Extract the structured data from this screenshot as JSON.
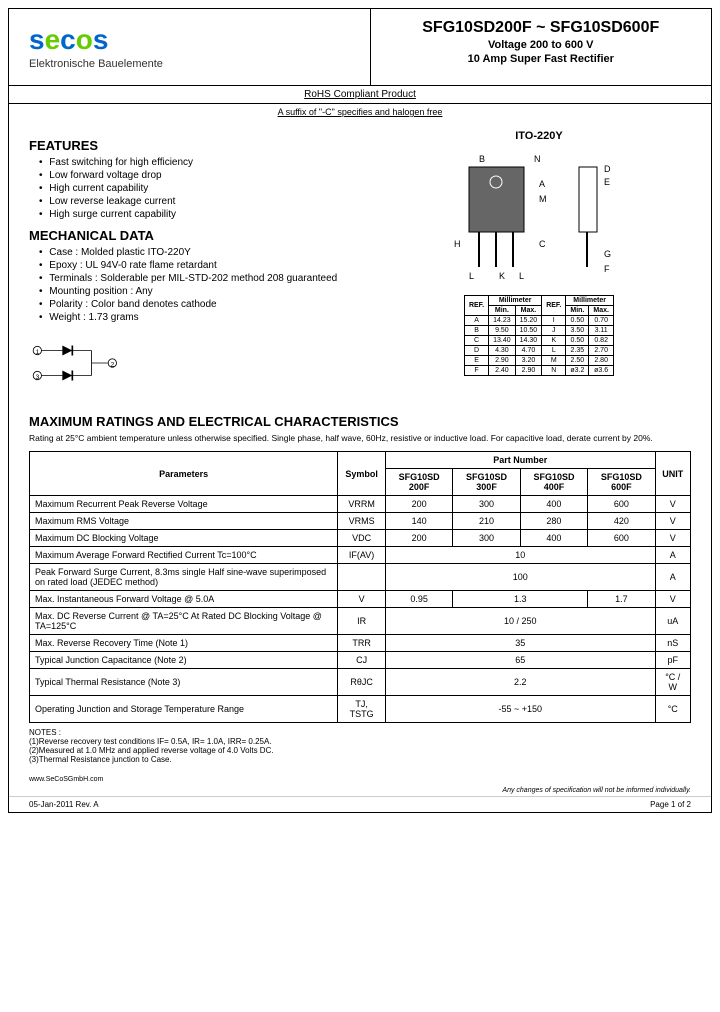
{
  "header": {
    "logo_letters": [
      "s",
      "e",
      "c",
      "o",
      "s"
    ],
    "subtitle": "Elektronische Bauelemente",
    "part_range": "SFG10SD200F ~ SFG10SD600F",
    "voltage_desc": "Voltage 200 to 600 V",
    "product_desc": "10 Amp Super Fast Rectifier",
    "rohs": "RoHS Compliant Product",
    "suffix": "A suffix of \"-C\" specifies and halogen free"
  },
  "features": {
    "title": "FEATURES",
    "items": [
      "Fast switching for high efficiency",
      "Low forward voltage drop",
      "High current capability",
      "Low reverse leakage current",
      "High surge current capability"
    ]
  },
  "mechanical": {
    "title": "MECHANICAL DATA",
    "items": [
      "Case : Molded plastic ITO-220Y",
      "Epoxy : UL 94V-0 rate flame retardant",
      "Terminals : Solderable per MIL-STD-202 method 208 guaranteed",
      "Mounting position : Any",
      "Polarity : Color band denotes cathode",
      "Weight : 1.73 grams"
    ]
  },
  "package": {
    "label": "ITO-220Y",
    "dim_letters": [
      "A",
      "B",
      "C",
      "D",
      "E",
      "F",
      "G",
      "H",
      "I",
      "J",
      "K",
      "L",
      "M",
      "N"
    ],
    "dimensions": {
      "headers": [
        "REF.",
        "Millimeter",
        "",
        "REF.",
        "Millimeter",
        ""
      ],
      "subheaders": [
        "",
        "Min.",
        "Max.",
        "",
        "Min.",
        "Max."
      ],
      "rows": [
        [
          "A",
          "14.23",
          "15.20",
          "I",
          "0.50",
          "0.70"
        ],
        [
          "B",
          "9.50",
          "10.50",
          "J",
          "3.50",
          "3.11"
        ],
        [
          "C",
          "13.40",
          "14.30",
          "K",
          "0.50",
          "0.82"
        ],
        [
          "D",
          "4.30",
          "4.70",
          "L",
          "2.35",
          "2.70"
        ],
        [
          "E",
          "2.90",
          "3.20",
          "M",
          "2.50",
          "2.80"
        ],
        [
          "F",
          "2.40",
          "2.90",
          "N",
          "ø3.2",
          "ø3.6"
        ]
      ]
    }
  },
  "ratings": {
    "title": "MAXIMUM RATINGS AND ELECTRICAL CHARACTERISTICS",
    "intro": "Rating at 25°C ambient temperature unless otherwise specified. Single phase, half wave, 60Hz, resistive or inductive load. For capacitive load, derate current by 20%.",
    "headers": {
      "parameters": "Parameters",
      "symbol": "Symbol",
      "part_number": "Part Number",
      "unit": "UNIT",
      "parts": [
        "SFG10SD 200F",
        "SFG10SD 300F",
        "SFG10SD 400F",
        "SFG10SD 600F"
      ]
    },
    "rows": [
      {
        "param": "Maximum Recurrent Peak Reverse Voltage",
        "symbol": "VRRM",
        "vals": [
          "200",
          "300",
          "400",
          "600"
        ],
        "unit": "V",
        "span": false
      },
      {
        "param": "Maximum RMS Voltage",
        "symbol": "VRMS",
        "vals": [
          "140",
          "210",
          "280",
          "420"
        ],
        "unit": "V",
        "span": false
      },
      {
        "param": "Maximum DC Blocking Voltage",
        "symbol": "VDC",
        "vals": [
          "200",
          "300",
          "400",
          "600"
        ],
        "unit": "V",
        "span": false
      },
      {
        "param": "Maximum Average Forward Rectified Current Tc=100°C",
        "symbol": "IF(AV)",
        "vals": [
          "10"
        ],
        "unit": "A",
        "span": true
      },
      {
        "param": "Peak Forward Surge Current, 8.3ms single Half sine-wave superimposed on rated load (JEDEC method)",
        "symbol": "",
        "vals": [
          "100"
        ],
        "unit": "A",
        "span": true
      },
      {
        "param": "Max. Instantaneous Forward Voltage @ 5.0A",
        "symbol": "V",
        "vals": [
          "0.95",
          "1.3",
          "",
          "1.7"
        ],
        "unit": "V",
        "span": false
      },
      {
        "param": "Max. DC Reverse Current @ TA=25°C At Rated DC Blocking Voltage @ TA=125°C",
        "symbol": "IR",
        "vals": [
          "10 / 250"
        ],
        "unit": "uA",
        "span": true
      },
      {
        "param": "Max. Reverse Recovery Time (Note 1)",
        "symbol": "TRR",
        "vals": [
          "35"
        ],
        "unit": "nS",
        "span": true
      },
      {
        "param": "Typical Junction Capacitance (Note 2)",
        "symbol": "CJ",
        "vals": [
          "65"
        ],
        "unit": "pF",
        "span": true
      },
      {
        "param": "Typical Thermal Resistance (Note 3)",
        "symbol": "RθJC",
        "vals": [
          "2.2"
        ],
        "unit": "°C / W",
        "span": true
      },
      {
        "param": "Operating Junction and Storage Temperature Range",
        "symbol": "TJ, TSTG",
        "vals": [
          "-55 ~ +150"
        ],
        "unit": "°C",
        "span": true
      }
    ],
    "notes_label": "NOTES :",
    "notes": [
      "(1)Reverse recovery test conditions IF= 0.5A, IR= 1.0A, IRR= 0.25A.",
      "(2)Measured at 1.0 MHz and applied reverse voltage of 4.0 Volts DC.",
      "(3)Thermal Resistance junction to Case."
    ]
  },
  "footer": {
    "url": "www.SeCoSGmbH.com",
    "disclaimer": "Any changes of specification will not be informed individually.",
    "date": "05-Jan-2011 Rev. A",
    "page": "Page 1 of 2"
  },
  "colors": {
    "logo_blue": "#0066cc",
    "logo_green": "#66cc00",
    "border": "#000000",
    "pkg_fill": "#666666"
  }
}
